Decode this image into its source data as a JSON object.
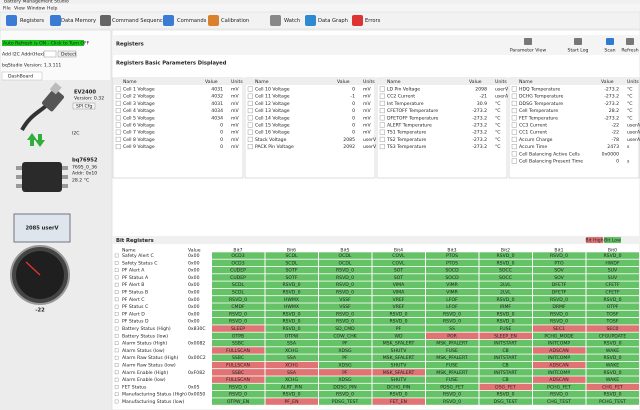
{
  "window_title": "Battery Management Studio",
  "menu": [
    "File",
    "View",
    "Window",
    "Help"
  ],
  "toolbar": [
    "Registers",
    "Data Memory",
    "Command Sequence",
    "Commands",
    "Calibration",
    "Watch",
    "Data Graph",
    "Errors"
  ],
  "sidebar": {
    "auto_refresh": "Auto Refresh is ON - Click to Turn OFF",
    "i2c_label": "Add I2C Addr(Hex)",
    "detect": "Detect",
    "version": "bqStudio Version: 1.3.111",
    "tab": "DashBoard",
    "adapter": {
      "name": "EV2400",
      "version": "Version: 0.32",
      "button": "SPI Cfg"
    },
    "bus": "I2C",
    "device": {
      "name": "bq76952",
      "id": "7695_0_36",
      "addr": "Addr: 0x10",
      "temp": "28.2 °C"
    },
    "voltage": "2085 userV",
    "gauge": "-22"
  },
  "panel": {
    "title": "Registers",
    "tools": [
      "Parameter View",
      "Start Log",
      "Scan",
      "Refresh"
    ],
    "section": "Registers",
    "subtitle": "Basic Parameters Displayed",
    "columns": [
      "Name",
      "Value",
      "Units"
    ],
    "tables": [
      [
        [
          "Cell 1 Voltage",
          "4031",
          "mV"
        ],
        [
          "Cell 2 Voltage",
          "4032",
          "mV"
        ],
        [
          "Cell 3 Voltage",
          "4031",
          "mV"
        ],
        [
          "Cell 4 Voltage",
          "4034",
          "mV"
        ],
        [
          "Cell 5 Voltage",
          "4034",
          "mV"
        ],
        [
          "Cell 6 Voltage",
          "0",
          "mV"
        ],
        [
          "Cell 7 Voltage",
          "0",
          "mV"
        ],
        [
          "Cell 8 Voltage",
          "0",
          "mV"
        ],
        [
          "Cell 9 Voltage",
          "0",
          "mV"
        ]
      ],
      [
        [
          "Cell 10 Voltage",
          "0",
          "mV"
        ],
        [
          "Cell 11 Voltage",
          "-1",
          "mV"
        ],
        [
          "Cell 12 Voltage",
          "0",
          "mV"
        ],
        [
          "Cell 13 Voltage",
          "0",
          "mV"
        ],
        [
          "Cell 14 Voltage",
          "0",
          "mV"
        ],
        [
          "Cell 15 Voltage",
          "0",
          "mV"
        ],
        [
          "Cell 16 Voltage",
          "0",
          "mV"
        ],
        [
          "Stack Voltage",
          "2085",
          "userV"
        ],
        [
          "PACK Pin Voltage",
          "2092",
          "userV"
        ]
      ],
      [
        [
          "LD Pin Voltage",
          "2098",
          "userV"
        ],
        [
          "CC2 Current",
          "-21",
          "userA"
        ],
        [
          "Int Temperature",
          "30.9",
          "°C"
        ],
        [
          "CFETOFF Temperature",
          "-273.2",
          "°C"
        ],
        [
          "DFETOFF Temperature",
          "-273.2",
          "°C"
        ],
        [
          "ALERT Temperature",
          "-273.2",
          "°C"
        ],
        [
          "TS1 Temperature",
          "-273.2",
          "°C"
        ],
        [
          "TS2 Temperature",
          "-273.2",
          "°C"
        ],
        [
          "TS3 Temperature",
          "-273.2",
          "°C"
        ]
      ],
      [
        [
          "HDQ Temperature",
          "-273.2",
          "°C"
        ],
        [
          "DCHG Temperature",
          "-273.2",
          "°C"
        ],
        [
          "DDSG Temperature",
          "-273.2",
          "°C"
        ],
        [
          "Cell Temperature",
          "28.2",
          "°C"
        ],
        [
          "FET Temperature",
          "-273.2",
          "°C"
        ],
        [
          "CC3 Current",
          "-22",
          "userA"
        ],
        [
          "CC1 Current",
          "-22",
          "userA"
        ],
        [
          "Accum Charge",
          "-78",
          "userAh"
        ],
        [
          "Accum Time",
          "2473",
          "s"
        ],
        [
          "Cell Balancing Active Cells",
          "0x0000"
        ],
        [
          "Cell Balancing Present Time",
          "0",
          "s"
        ]
      ]
    ]
  },
  "bits": {
    "title": "Bit Registers",
    "legend": [
      {
        "label": "Bit High",
        "color": "#e07474"
      },
      {
        "label": "Bit Low",
        "color": "#66c266"
      }
    ],
    "columns": [
      "Name",
      "Value",
      "Bit7",
      "Bit6",
      "Bit5",
      "Bit4",
      "Bit3",
      "Bit2",
      "Bit1",
      "Bit0"
    ],
    "rows": [
      {
        "name": "Safety Alert C",
        "value": "0x00",
        "bits": [
          "OCD3",
          "SCDL",
          "OCDL",
          "COVL",
          "PTOS",
          "RSVD_0",
          "RSVD_0",
          "RSVD_0"
        ],
        "high": [
          0,
          0,
          0,
          0,
          0,
          0,
          0,
          0
        ]
      },
      {
        "name": "Safety Status C",
        "value": "0x00",
        "bits": [
          "OCD3",
          "SCDL",
          "OCDL",
          "COVL",
          "PTOS",
          "RSVD_0",
          "PTO",
          "HWDF"
        ],
        "high": [
          0,
          0,
          0,
          0,
          0,
          0,
          0,
          0
        ]
      },
      {
        "name": "PF Alert A",
        "value": "0x00",
        "bits": [
          "CUDEP",
          "SOTF",
          "RSVD_0",
          "SOT",
          "SOCD",
          "SOCC",
          "SOV",
          "SUV"
        ],
        "high": [
          0,
          0,
          0,
          0,
          0,
          0,
          0,
          0
        ]
      },
      {
        "name": "PF Status A",
        "value": "0x00",
        "bits": [
          "CUDEP",
          "SOTF",
          "RSVD_0",
          "SOT",
          "SOCD",
          "SOCC",
          "SOV",
          "SUV"
        ],
        "high": [
          0,
          0,
          0,
          0,
          0,
          0,
          0,
          0
        ]
      },
      {
        "name": "PF Alert B",
        "value": "0x00",
        "bits": [
          "SCDL",
          "RSVD_0",
          "RSVD_0",
          "VIMA",
          "VIMR",
          "2LVL",
          "DFETF",
          "CFETF"
        ],
        "high": [
          0,
          0,
          0,
          0,
          0,
          0,
          0,
          0
        ]
      },
      {
        "name": "PF Status B",
        "value": "0x00",
        "bits": [
          "SCDL",
          "RSVD_0",
          "RSVD_0",
          "VIMA",
          "VIMR",
          "2LVL",
          "DFETF",
          "CFETF"
        ],
        "high": [
          0,
          0,
          0,
          0,
          0,
          0,
          0,
          0
        ]
      },
      {
        "name": "PF Alert C",
        "value": "0x00",
        "bits": [
          "RSVD_0",
          "HWMX",
          "VSSF",
          "VREF",
          "LFOF",
          "RSVD_0",
          "RSVD_0",
          "RSVD_0"
        ],
        "high": [
          0,
          0,
          0,
          0,
          0,
          0,
          0,
          0
        ]
      },
      {
        "name": "PF Status C",
        "value": "0x00",
        "bits": [
          "CMDF",
          "HWMX",
          "VSSF",
          "VREF",
          "LFOF",
          "IRMF",
          "DRMF",
          "OTPF"
        ],
        "high": [
          0,
          0,
          0,
          0,
          0,
          0,
          0,
          0
        ]
      },
      {
        "name": "PF Alert D",
        "value": "0x00",
        "bits": [
          "RSVD_0",
          "RSVD_0",
          "RSVD_0",
          "RSVD_0",
          "RSVD_0",
          "RSVD_0",
          "RSVD_0",
          "TOSF"
        ],
        "high": [
          0,
          0,
          0,
          0,
          0,
          0,
          0,
          0
        ]
      },
      {
        "name": "PF Status D",
        "value": "0x00",
        "bits": [
          "RSVD_0",
          "RSVD_0",
          "RSVD_0",
          "RSVD_0",
          "RSVD_0",
          "RSVD_0",
          "RSVD_0",
          "TOSF"
        ],
        "high": [
          0,
          0,
          0,
          0,
          0,
          0,
          0,
          0
        ]
      },
      {
        "name": "Battery Status (High)",
        "value": "0x830C",
        "bits": [
          "SLEEP",
          "RSVD_0",
          "SD_CMD",
          "PF",
          "SS",
          "FUSE",
          "SEC1",
          "SEC0"
        ],
        "high": [
          1,
          0,
          0,
          0,
          0,
          0,
          1,
          1
        ]
      },
      {
        "name": "Battery Status (low)",
        "bits": [
          "OTPB",
          "OTPW",
          "COW_CHK",
          "WD",
          "POR",
          "SLEEP_EN",
          "PCHG_MODE",
          "CFGUPDATE"
        ],
        "high": [
          0,
          0,
          0,
          0,
          1,
          1,
          0,
          0
        ]
      },
      {
        "name": "Alarm Status (High)",
        "value": "0x0082",
        "bits": [
          "SSBC",
          "SSA",
          "PF",
          "MSK_SFALERT",
          "MSK_PFALERT",
          "INITSTART",
          "INITCOMP",
          "RSVD_0"
        ],
        "high": [
          0,
          0,
          0,
          0,
          0,
          0,
          0,
          0
        ]
      },
      {
        "name": "Alarm Status (low)",
        "bits": [
          "FULLSCAN",
          "XCHG",
          "XDSG",
          "SHUTV",
          "FUSE",
          "CB",
          "ADSCAN",
          "WAKE"
        ],
        "high": [
          1,
          0,
          0,
          0,
          0,
          0,
          1,
          0
        ]
      },
      {
        "name": "Alarm Raw Status (High)",
        "value": "0x00C2",
        "bits": [
          "SSBC",
          "SSA",
          "PF",
          "MSK_SFALERT",
          "MSK_PFALERT",
          "INITSTART",
          "INITCOMP",
          "RSVD_0"
        ],
        "high": [
          0,
          0,
          0,
          0,
          0,
          0,
          0,
          0
        ]
      },
      {
        "name": "Alarm Raw Status (low)",
        "bits": [
          "FULLSCAN",
          "XCHG",
          "XDSG",
          "SHUTV",
          "FUSE",
          "CB",
          "ADSCAN",
          "WAKE"
        ],
        "high": [
          1,
          1,
          0,
          0,
          0,
          0,
          1,
          0
        ]
      },
      {
        "name": "Alarm Enable (High)",
        "value": "0xF082",
        "bits": [
          "SSBC",
          "SSA",
          "PF",
          "MSK_SFALERT",
          "MSK_PFALERT",
          "INITSTART",
          "INITCOMP",
          "RSVD_0"
        ],
        "high": [
          1,
          1,
          1,
          1,
          0,
          0,
          0,
          0
        ]
      },
      {
        "name": "Alarm Enable (low)",
        "bits": [
          "FULLSCAN",
          "XCHG",
          "XDSG",
          "SHUTV",
          "FUSE",
          "CB",
          "ADSCAN",
          "WAKE"
        ],
        "high": [
          1,
          0,
          0,
          0,
          0,
          0,
          1,
          0
        ]
      },
      {
        "name": "FET Status",
        "value": "0x05",
        "bits": [
          "RSVD_0",
          "ALRT_PIN",
          "DDSG_PIN",
          "DCHG_PIN",
          "PDSG_FET",
          "DSG_FET",
          "PCHG_FET",
          "CHG_FET"
        ],
        "high": [
          0,
          0,
          0,
          0,
          0,
          1,
          0,
          1
        ]
      },
      {
        "name": "Manufacturing Status (High)",
        "value": "0x0050",
        "bits": [
          "RSVD_0",
          "RSVD_0",
          "RSVD_0",
          "RSVD_0",
          "RSVD_0",
          "RSVD_0",
          "RSVD_0",
          "RSVD_0"
        ],
        "high": [
          0,
          0,
          0,
          0,
          0,
          0,
          0,
          0
        ]
      },
      {
        "name": "Manufacturing Status (low)",
        "bits": [
          "OTPW_EN",
          "PF_EN",
          "PDSG_TEST",
          "FET_EN",
          "RSVD_0",
          "DSG_TEST",
          "CHG_TEST",
          "PCHG_TEST"
        ],
        "high": [
          0,
          1,
          0,
          1,
          0,
          0,
          0,
          0
        ]
      }
    ]
  }
}
